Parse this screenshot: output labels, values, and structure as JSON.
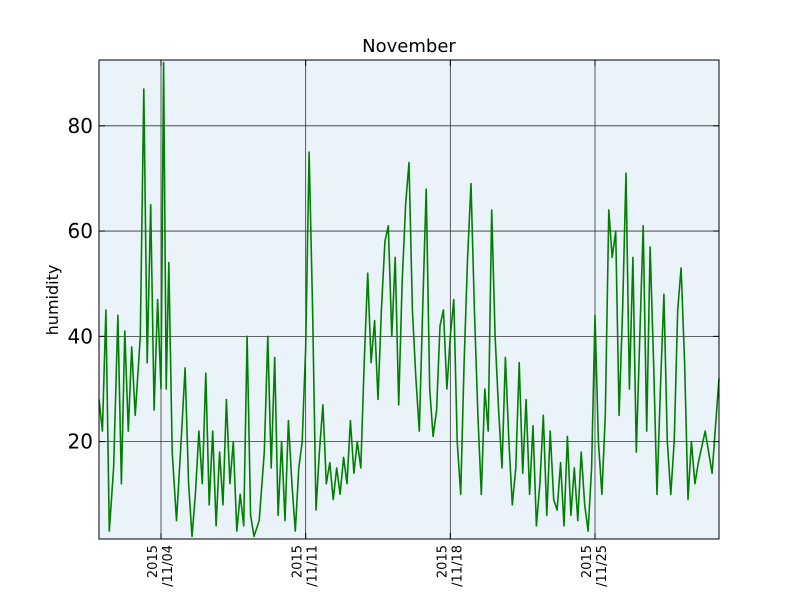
{
  "chart_data": {
    "type": "line",
    "title": "November",
    "xlabel": "",
    "ylabel": "humidity",
    "x_range": [
      "2015-11-01",
      "2015-12-01"
    ],
    "ylim": [
      1.5,
      92.5
    ],
    "y_ticks": [
      20,
      40,
      60,
      80
    ],
    "x_ticks": [
      {
        "date": "2015-11-04",
        "line1": "2015",
        "line2": "/11/04"
      },
      {
        "date": "2015-11-11",
        "line1": "2015",
        "line2": "/11/11"
      },
      {
        "date": "2015-11-18",
        "line1": "2015",
        "line2": "/11/18"
      },
      {
        "date": "2015-11-25",
        "line1": "2015",
        "line2": "/11/25"
      }
    ],
    "grid": true,
    "colors": {
      "line": "#008000",
      "plot_bg": "#eaf2fa",
      "grid": "#333333"
    },
    "series": [
      {
        "values": [
          {
            "x": "2015-11-01 00:00",
            "y": 28
          },
          {
            "x": "2015-11-01 04:00",
            "y": 22
          },
          {
            "x": "2015-11-01 08:00",
            "y": 45
          },
          {
            "x": "2015-11-01 12:00",
            "y": 3
          },
          {
            "x": "2015-11-01 17:00",
            "y": 15
          },
          {
            "x": "2015-11-01 22:00",
            "y": 44
          },
          {
            "x": "2015-11-02 02:00",
            "y": 12
          },
          {
            "x": "2015-11-02 06:00",
            "y": 41
          },
          {
            "x": "2015-11-02 10:00",
            "y": 22
          },
          {
            "x": "2015-11-02 14:00",
            "y": 38
          },
          {
            "x": "2015-11-02 18:00",
            "y": 25
          },
          {
            "x": "2015-11-03 00:00",
            "y": 40
          },
          {
            "x": "2015-11-03 04:00",
            "y": 87
          },
          {
            "x": "2015-11-03 08:00",
            "y": 35
          },
          {
            "x": "2015-11-03 12:00",
            "y": 65
          },
          {
            "x": "2015-11-03 16:00",
            "y": 26
          },
          {
            "x": "2015-11-03 20:00",
            "y": 47
          },
          {
            "x": "2015-11-04 00:00",
            "y": 30
          },
          {
            "x": "2015-11-04 03:00",
            "y": 92
          },
          {
            "x": "2015-11-04 06:00",
            "y": 30
          },
          {
            "x": "2015-11-04 09:00",
            "y": 54
          },
          {
            "x": "2015-11-04 13:00",
            "y": 18
          },
          {
            "x": "2015-11-04 18:00",
            "y": 5
          },
          {
            "x": "2015-11-05 00:00",
            "y": 22
          },
          {
            "x": "2015-11-05 04:00",
            "y": 34
          },
          {
            "x": "2015-11-05 08:00",
            "y": 12
          },
          {
            "x": "2015-11-05 12:00",
            "y": 2
          },
          {
            "x": "2015-11-05 16:00",
            "y": 10
          },
          {
            "x": "2015-11-05 20:00",
            "y": 22
          },
          {
            "x": "2015-11-06 00:00",
            "y": 12
          },
          {
            "x": "2015-11-06 04:00",
            "y": 33
          },
          {
            "x": "2015-11-06 08:00",
            "y": 8
          },
          {
            "x": "2015-11-06 12:00",
            "y": 22
          },
          {
            "x": "2015-11-06 16:00",
            "y": 4
          },
          {
            "x": "2015-11-06 20:00",
            "y": 18
          },
          {
            "x": "2015-11-07 00:00",
            "y": 8
          },
          {
            "x": "2015-11-07 04:00",
            "y": 28
          },
          {
            "x": "2015-11-07 08:00",
            "y": 12
          },
          {
            "x": "2015-11-07 12:00",
            "y": 20
          },
          {
            "x": "2015-11-07 16:00",
            "y": 3
          },
          {
            "x": "2015-11-07 20:00",
            "y": 10
          },
          {
            "x": "2015-11-08 00:00",
            "y": 4
          },
          {
            "x": "2015-11-08 04:00",
            "y": 40
          },
          {
            "x": "2015-11-08 08:00",
            "y": 6
          },
          {
            "x": "2015-11-08 12:00",
            "y": 2
          },
          {
            "x": "2015-11-08 18:00",
            "y": 5
          },
          {
            "x": "2015-11-09 00:00",
            "y": 18
          },
          {
            "x": "2015-11-09 04:00",
            "y": 40
          },
          {
            "x": "2015-11-09 08:00",
            "y": 15
          },
          {
            "x": "2015-11-09 12:00",
            "y": 36
          },
          {
            "x": "2015-11-09 16:00",
            "y": 6
          },
          {
            "x": "2015-11-09 20:00",
            "y": 20
          },
          {
            "x": "2015-11-10 00:00",
            "y": 5
          },
          {
            "x": "2015-11-10 04:00",
            "y": 24
          },
          {
            "x": "2015-11-10 08:00",
            "y": 12
          },
          {
            "x": "2015-11-10 12:00",
            "y": 3
          },
          {
            "x": "2015-11-10 16:00",
            "y": 15
          },
          {
            "x": "2015-11-10 20:00",
            "y": 20
          },
          {
            "x": "2015-11-11 00:00",
            "y": 38
          },
          {
            "x": "2015-11-11 04:00",
            "y": 75
          },
          {
            "x": "2015-11-11 08:00",
            "y": 45
          },
          {
            "x": "2015-11-11 12:00",
            "y": 7
          },
          {
            "x": "2015-11-11 16:00",
            "y": 18
          },
          {
            "x": "2015-11-11 20:00",
            "y": 27
          },
          {
            "x": "2015-11-12 00:00",
            "y": 12
          },
          {
            "x": "2015-11-12 04:00",
            "y": 16
          },
          {
            "x": "2015-11-12 08:00",
            "y": 9
          },
          {
            "x": "2015-11-12 12:00",
            "y": 15
          },
          {
            "x": "2015-11-12 16:00",
            "y": 10
          },
          {
            "x": "2015-11-12 20:00",
            "y": 17
          },
          {
            "x": "2015-11-13 00:00",
            "y": 12
          },
          {
            "x": "2015-11-13 04:00",
            "y": 24
          },
          {
            "x": "2015-11-13 08:00",
            "y": 14
          },
          {
            "x": "2015-11-13 12:00",
            "y": 20
          },
          {
            "x": "2015-11-13 16:00",
            "y": 15
          },
          {
            "x": "2015-11-13 20:00",
            "y": 35
          },
          {
            "x": "2015-11-14 00:00",
            "y": 52
          },
          {
            "x": "2015-11-14 04:00",
            "y": 35
          },
          {
            "x": "2015-11-14 08:00",
            "y": 43
          },
          {
            "x": "2015-11-14 12:00",
            "y": 28
          },
          {
            "x": "2015-11-14 16:00",
            "y": 45
          },
          {
            "x": "2015-11-14 20:00",
            "y": 58
          },
          {
            "x": "2015-11-15 00:00",
            "y": 61
          },
          {
            "x": "2015-11-15 04:00",
            "y": 40
          },
          {
            "x": "2015-11-15 08:00",
            "y": 55
          },
          {
            "x": "2015-11-15 12:00",
            "y": 27
          },
          {
            "x": "2015-11-15 16:00",
            "y": 50
          },
          {
            "x": "2015-11-15 20:00",
            "y": 65
          },
          {
            "x": "2015-11-16 00:00",
            "y": 73
          },
          {
            "x": "2015-11-16 04:00",
            "y": 45
          },
          {
            "x": "2015-11-16 08:00",
            "y": 32
          },
          {
            "x": "2015-11-16 12:00",
            "y": 22
          },
          {
            "x": "2015-11-16 16:00",
            "y": 46
          },
          {
            "x": "2015-11-16 20:00",
            "y": 68
          },
          {
            "x": "2015-11-17 00:00",
            "y": 30
          },
          {
            "x": "2015-11-17 04:00",
            "y": 21
          },
          {
            "x": "2015-11-17 08:00",
            "y": 26
          },
          {
            "x": "2015-11-17 12:00",
            "y": 42
          },
          {
            "x": "2015-11-17 16:00",
            "y": 45
          },
          {
            "x": "2015-11-17 20:00",
            "y": 30
          },
          {
            "x": "2015-11-18 00:00",
            "y": 40
          },
          {
            "x": "2015-11-18 04:00",
            "y": 47
          },
          {
            "x": "2015-11-18 08:00",
            "y": 20
          },
          {
            "x": "2015-11-18 12:00",
            "y": 10
          },
          {
            "x": "2015-11-18 16:00",
            "y": 35
          },
          {
            "x": "2015-11-18 20:00",
            "y": 55
          },
          {
            "x": "2015-11-19 00:00",
            "y": 69
          },
          {
            "x": "2015-11-19 04:00",
            "y": 45
          },
          {
            "x": "2015-11-19 08:00",
            "y": 25
          },
          {
            "x": "2015-11-19 12:00",
            "y": 10
          },
          {
            "x": "2015-11-19 16:00",
            "y": 30
          },
          {
            "x": "2015-11-19 20:00",
            "y": 22
          },
          {
            "x": "2015-11-20 00:00",
            "y": 64
          },
          {
            "x": "2015-11-20 04:00",
            "y": 40
          },
          {
            "x": "2015-11-20 08:00",
            "y": 26
          },
          {
            "x": "2015-11-20 12:00",
            "y": 15
          },
          {
            "x": "2015-11-20 16:00",
            "y": 36
          },
          {
            "x": "2015-11-20 20:00",
            "y": 20
          },
          {
            "x": "2015-11-21 00:00",
            "y": 8
          },
          {
            "x": "2015-11-21 04:00",
            "y": 15
          },
          {
            "x": "2015-11-21 08:00",
            "y": 35
          },
          {
            "x": "2015-11-21 12:00",
            "y": 14
          },
          {
            "x": "2015-11-21 16:00",
            "y": 28
          },
          {
            "x": "2015-11-21 20:00",
            "y": 10
          },
          {
            "x": "2015-11-22 00:00",
            "y": 23
          },
          {
            "x": "2015-11-22 04:00",
            "y": 4
          },
          {
            "x": "2015-11-22 08:00",
            "y": 12
          },
          {
            "x": "2015-11-22 12:00",
            "y": 25
          },
          {
            "x": "2015-11-22 16:00",
            "y": 6
          },
          {
            "x": "2015-11-22 20:00",
            "y": 22
          },
          {
            "x": "2015-11-23 00:00",
            "y": 9
          },
          {
            "x": "2015-11-23 04:00",
            "y": 7
          },
          {
            "x": "2015-11-23 08:00",
            "y": 16
          },
          {
            "x": "2015-11-23 12:00",
            "y": 4
          },
          {
            "x": "2015-11-23 16:00",
            "y": 21
          },
          {
            "x": "2015-11-23 20:00",
            "y": 6
          },
          {
            "x": "2015-11-24 00:00",
            "y": 15
          },
          {
            "x": "2015-11-24 04:00",
            "y": 5
          },
          {
            "x": "2015-11-24 08:00",
            "y": 18
          },
          {
            "x": "2015-11-24 12:00",
            "y": 8
          },
          {
            "x": "2015-11-24 16:00",
            "y": 3
          },
          {
            "x": "2015-11-24 20:00",
            "y": 15
          },
          {
            "x": "2015-11-25 00:00",
            "y": 44
          },
          {
            "x": "2015-11-25 04:00",
            "y": 20
          },
          {
            "x": "2015-11-25 08:00",
            "y": 10
          },
          {
            "x": "2015-11-25 12:00",
            "y": 25
          },
          {
            "x": "2015-11-25 16:00",
            "y": 64
          },
          {
            "x": "2015-11-25 20:00",
            "y": 55
          },
          {
            "x": "2015-11-26 00:00",
            "y": 60
          },
          {
            "x": "2015-11-26 04:00",
            "y": 25
          },
          {
            "x": "2015-11-26 08:00",
            "y": 45
          },
          {
            "x": "2015-11-26 12:00",
            "y": 71
          },
          {
            "x": "2015-11-26 16:00",
            "y": 30
          },
          {
            "x": "2015-11-26 20:00",
            "y": 55
          },
          {
            "x": "2015-11-27 00:00",
            "y": 18
          },
          {
            "x": "2015-11-27 04:00",
            "y": 40
          },
          {
            "x": "2015-11-27 08:00",
            "y": 61
          },
          {
            "x": "2015-11-27 12:00",
            "y": 22
          },
          {
            "x": "2015-11-27 16:00",
            "y": 57
          },
          {
            "x": "2015-11-27 20:00",
            "y": 35
          },
          {
            "x": "2015-11-28 00:00",
            "y": 10
          },
          {
            "x": "2015-11-28 04:00",
            "y": 30
          },
          {
            "x": "2015-11-28 08:00",
            "y": 48
          },
          {
            "x": "2015-11-28 12:00",
            "y": 20
          },
          {
            "x": "2015-11-28 16:00",
            "y": 10
          },
          {
            "x": "2015-11-28 20:00",
            "y": 20
          },
          {
            "x": "2015-11-29 00:00",
            "y": 45
          },
          {
            "x": "2015-11-29 04:00",
            "y": 53
          },
          {
            "x": "2015-11-29 08:00",
            "y": 35
          },
          {
            "x": "2015-11-29 12:00",
            "y": 9
          },
          {
            "x": "2015-11-29 16:00",
            "y": 20
          },
          {
            "x": "2015-11-29 20:00",
            "y": 12
          },
          {
            "x": "2015-11-30 00:00",
            "y": 16
          },
          {
            "x": "2015-11-30 08:00",
            "y": 22
          },
          {
            "x": "2015-11-30 16:00",
            "y": 14
          },
          {
            "x": "2015-12-01 00:00",
            "y": 32
          }
        ]
      }
    ]
  }
}
